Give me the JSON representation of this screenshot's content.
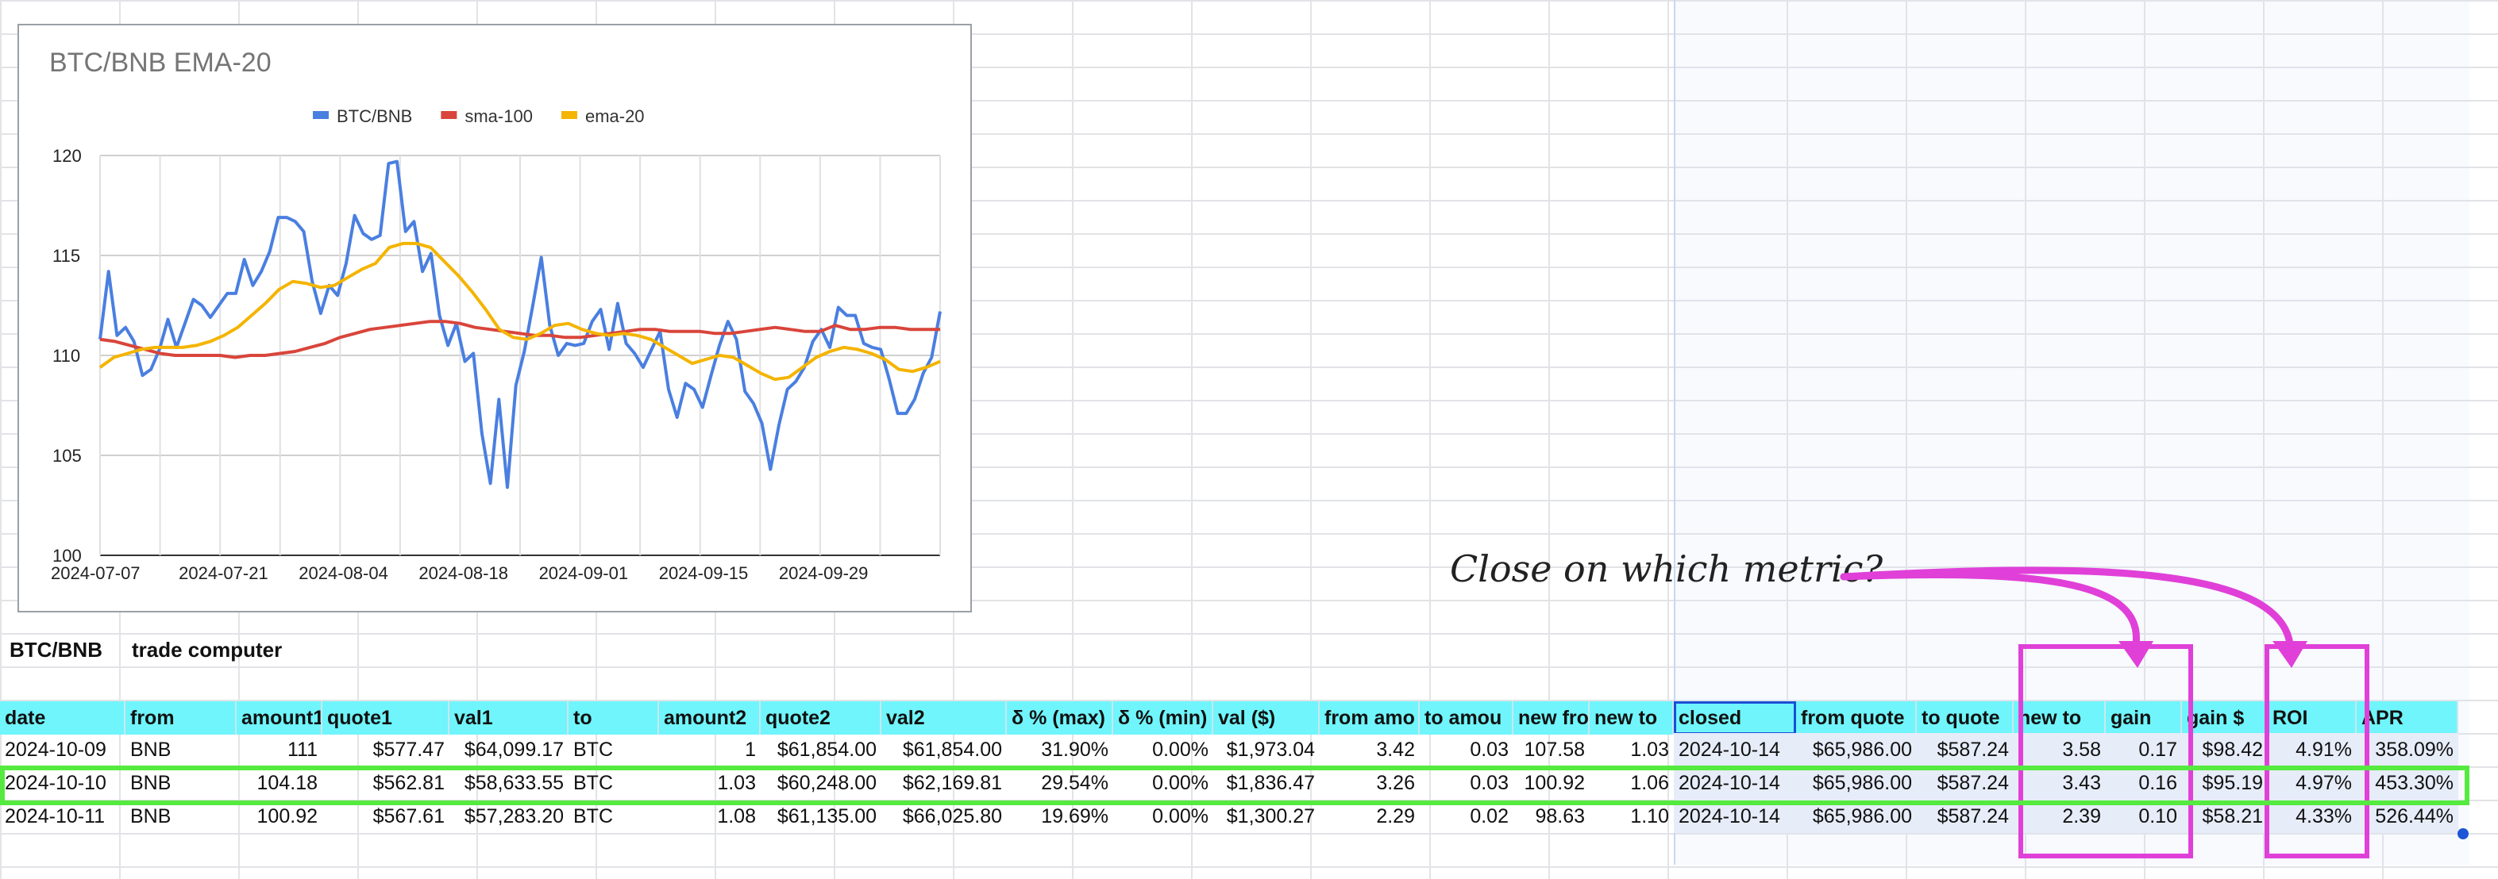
{
  "chart": {
    "title": "BTC/BNB EMA-20",
    "legend": [
      "BTC/BNB",
      "sma-100",
      "ema-20"
    ]
  },
  "chart_data": {
    "type": "line",
    "title": "BTC/BNB EMA-20",
    "ylim": [
      100,
      120
    ],
    "yticks": [
      "100",
      "105",
      "110",
      "115",
      "120"
    ],
    "xticks": [
      "2024-07-07",
      "2024-07-21",
      "2024-08-04",
      "2024-08-18",
      "2024-09-01",
      "2024-09-15",
      "2024-09-29"
    ],
    "series": [
      {
        "name": "BTC/BNB",
        "color": "#4a7fe0",
        "values": [
          110.8,
          114.2,
          111.0,
          111.4,
          110.7,
          109.0,
          109.3,
          110.3,
          111.8,
          110.4,
          111.6,
          112.8,
          112.5,
          111.9,
          112.5,
          113.1,
          113.1,
          114.8,
          113.5,
          114.2,
          115.2,
          116.9,
          116.9,
          116.7,
          116.2,
          113.7,
          112.1,
          113.5,
          113.0,
          114.6,
          117.0,
          116.1,
          115.8,
          116.0,
          119.6,
          119.7,
          116.2,
          116.7,
          114.2,
          115.1,
          112.0,
          110.5,
          111.6,
          109.7,
          110.1,
          106.1,
          103.6,
          107.8,
          103.4,
          108.5,
          110.2,
          112.5,
          114.9,
          111.5,
          110.0,
          110.6,
          110.5,
          110.6,
          111.7,
          112.3,
          110.3,
          112.6,
          110.6,
          110.1,
          109.4,
          110.3,
          111.2,
          108.3,
          106.9,
          108.6,
          108.3,
          107.4,
          109.0,
          110.5,
          111.7,
          110.8,
          108.2,
          107.6,
          106.6,
          104.3,
          106.5,
          108.3,
          108.7,
          109.4,
          110.7,
          111.3,
          110.4,
          112.4,
          112.0,
          112.0,
          110.6,
          110.4,
          110.3,
          108.8,
          107.1,
          107.1,
          107.8,
          109.1,
          109.9,
          112.2
        ]
      },
      {
        "name": "sma-100",
        "color": "#d9453b",
        "values": [
          110.8,
          110.7,
          110.5,
          110.3,
          110.1,
          110.0,
          110.0,
          110.0,
          110.0,
          109.9,
          110.0,
          110.0,
          110.1,
          110.2,
          110.4,
          110.6,
          110.9,
          111.1,
          111.3,
          111.4,
          111.5,
          111.6,
          111.7,
          111.7,
          111.6,
          111.4,
          111.3,
          111.2,
          111.1,
          111.0,
          111.0,
          110.9,
          110.9,
          111.0,
          111.1,
          111.2,
          111.3,
          111.3,
          111.2,
          111.2,
          111.2,
          111.1,
          111.1,
          111.2,
          111.3,
          111.4,
          111.3,
          111.2,
          111.2,
          111.5,
          111.3,
          111.3,
          111.4,
          111.4,
          111.3,
          111.3,
          111.3
        ]
      },
      {
        "name": "ema-20",
        "color": "#f4b400",
        "values": [
          109.4,
          109.9,
          110.1,
          110.3,
          110.4,
          110.4,
          110.4,
          110.5,
          110.7,
          111.0,
          111.4,
          112.0,
          112.6,
          113.3,
          113.7,
          113.6,
          113.4,
          113.5,
          113.9,
          114.3,
          114.6,
          115.4,
          115.6,
          115.6,
          115.4,
          114.7,
          114.0,
          113.2,
          112.3,
          111.3,
          110.9,
          110.8,
          111.1,
          111.5,
          111.6,
          111.3,
          111.1,
          111.0,
          111.1,
          111.0,
          110.8,
          110.4,
          110.0,
          109.6,
          109.8,
          110.0,
          109.9,
          109.5,
          109.1,
          108.8,
          108.9,
          109.4,
          109.9,
          110.2,
          110.4,
          110.3,
          110.1,
          109.8,
          109.3,
          109.2,
          109.4,
          109.7
        ]
      }
    ]
  },
  "sheet": {
    "title_left": "BTC/BNB",
    "title_right": "trade computer",
    "headers": [
      "date",
      "from",
      "amount1",
      "quote1",
      "val1",
      "to",
      "amount2",
      "quote2",
      "val2",
      "δ % (max)",
      "δ % (min)",
      "val ($)",
      "from amo",
      "to amou",
      "new fro",
      "new to",
      "closed",
      "from quote",
      "to quote",
      "new to",
      "gain",
      "gain $",
      "ROI",
      "APR"
    ],
    "rows": [
      [
        "2024-10-09",
        "BNB",
        "111",
        "$577.47",
        "$64,099.17",
        "BTC",
        "1",
        "$61,854.00",
        "$61,854.00",
        "31.90%",
        "0.00%",
        "$1,973.04",
        "3.42",
        "0.03",
        "107.58",
        "1.03",
        "2024-10-14",
        "$65,986.00",
        "$587.24",
        "3.58",
        "0.17",
        "$98.42",
        "4.91%",
        "358.09%"
      ],
      [
        "2024-10-10",
        "BNB",
        "104.18",
        "$562.81",
        "$58,633.55",
        "BTC",
        "1.03",
        "$60,248.00",
        "$62,169.81",
        "29.54%",
        "0.00%",
        "$1,836.47",
        "3.26",
        "0.03",
        "100.92",
        "1.06",
        "2024-10-14",
        "$65,986.00",
        "$587.24",
        "3.43",
        "0.16",
        "$95.19",
        "4.97%",
        "453.30%"
      ],
      [
        "2024-10-11",
        "BNB",
        "100.92",
        "$567.61",
        "$57,283.20",
        "BTC",
        "1.08",
        "$61,135.00",
        "$66,025.80",
        "19.69%",
        "0.00%",
        "$1,300.27",
        "2.29",
        "0.02",
        "98.63",
        "1.10",
        "2024-10-14",
        "$65,986.00",
        "$587.24",
        "2.39",
        "0.10",
        "$58.21",
        "4.33%",
        "526.44%"
      ]
    ]
  },
  "annotation": {
    "text": "Close on which metric?",
    "color": "#e040d8",
    "highlight_color": "#55ea3f"
  }
}
